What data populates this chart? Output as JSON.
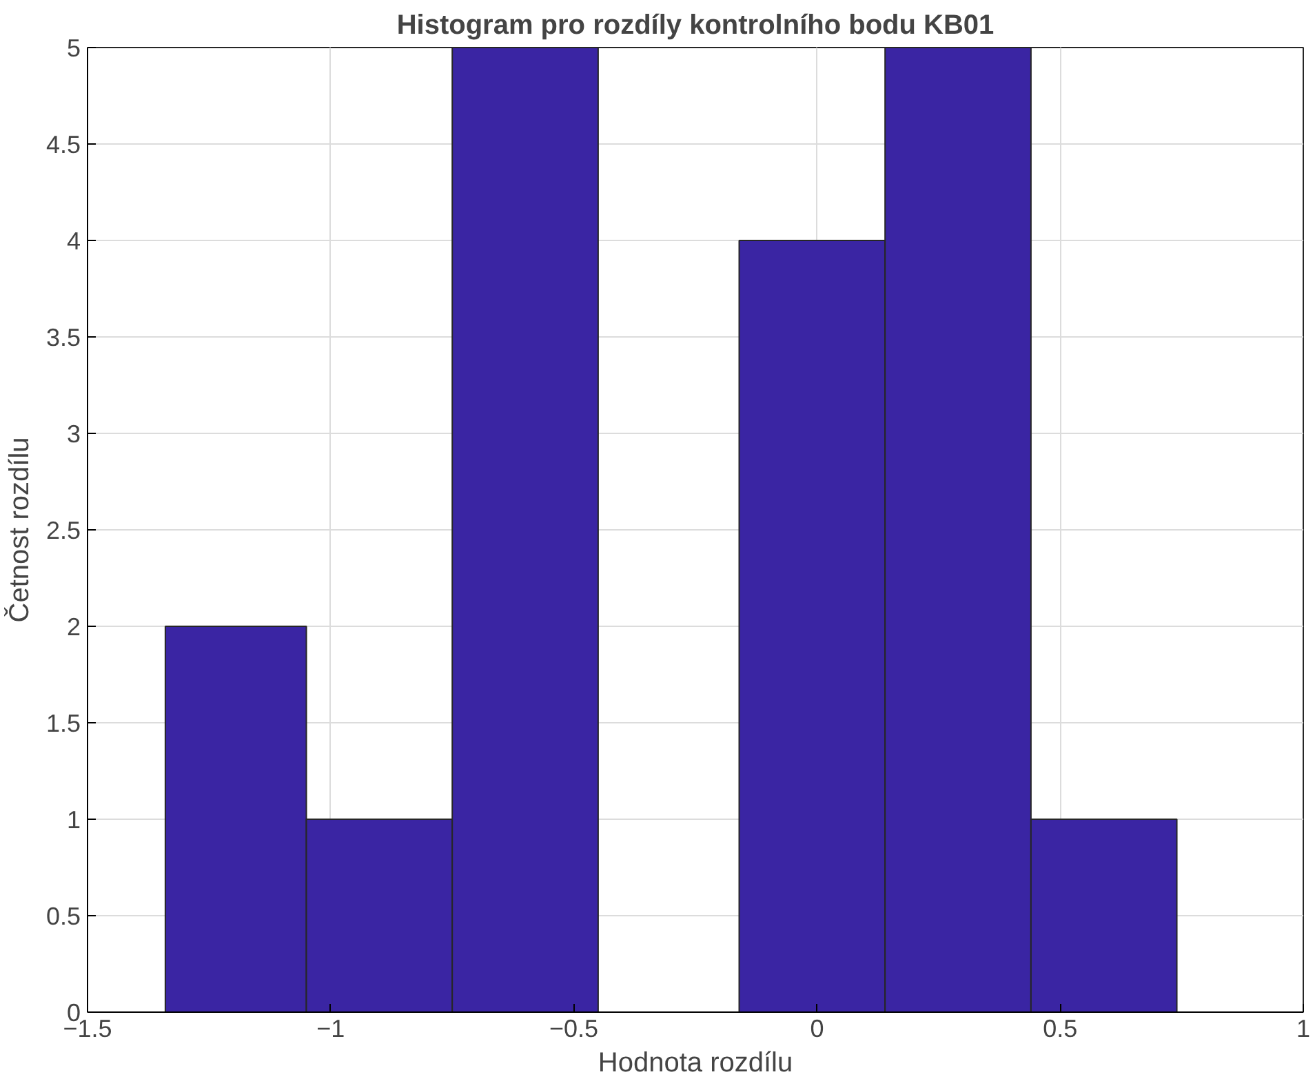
{
  "chart_data": {
    "type": "histogram",
    "title": "Histogram pro rozdíly kontrolního bodu KB01",
    "xlabel": "Hodnota rozdílu",
    "ylabel": "Četnost rozdílu",
    "bins": [
      -1.34,
      -1.05,
      -0.75,
      -0.45,
      -0.16,
      0.14,
      0.44,
      0.74
    ],
    "values": [
      2,
      1,
      5,
      0,
      4,
      5,
      1
    ],
    "color": "#3a25a3",
    "xlim": [
      -1.5,
      1
    ],
    "xticks": [
      -1.5,
      -1,
      -0.5,
      0,
      0.5,
      1
    ],
    "ylim": [
      0,
      5
    ],
    "yticks": [
      0,
      0.5,
      1,
      1.5,
      2,
      2.5,
      3,
      3.5,
      4,
      4.5,
      5
    ],
    "grid": true
  }
}
